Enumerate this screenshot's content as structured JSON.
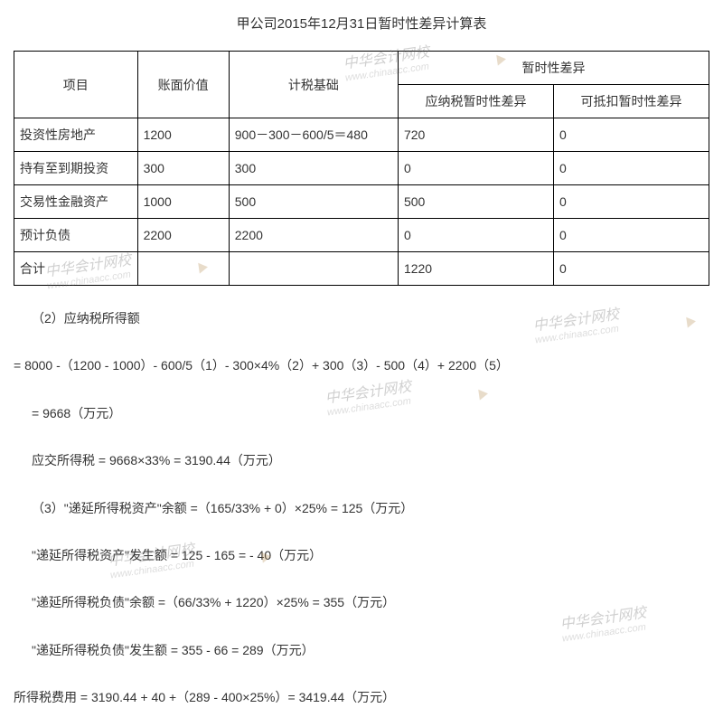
{
  "title": "甲公司2015年12月31日暂时性差异计算表",
  "table": {
    "headers": {
      "item": "项目",
      "book_value": "账面价值",
      "tax_basis": "计税基础",
      "temp_diff": "暂时性差异",
      "taxable_diff": "应纳税暂时性差异",
      "deductible_diff": "可抵扣暂时性差异"
    },
    "rows": [
      {
        "item": "投资性房地产",
        "book": "1200",
        "tax": "900－300－600/5＝480",
        "taxable": "720",
        "deductible": "0"
      },
      {
        "item": "持有至到期投资",
        "book": "300",
        "tax": "300",
        "taxable": "0",
        "deductible": "0"
      },
      {
        "item": "交易性金融资产",
        "book": "1000",
        "tax": "500",
        "taxable": "500",
        "deductible": "0"
      },
      {
        "item": "预计负债",
        "book": "2200",
        "tax": "2200",
        "taxable": "0",
        "deductible": "0"
      },
      {
        "item": "合计",
        "book": "",
        "tax": "",
        "taxable": "1220",
        "deductible": "0"
      }
    ]
  },
  "calculations": {
    "line1": "（2）应纳税所得额",
    "line2": "= 8000 -（1200 - 1000）- 600/5（1）- 300×4%（2）+ 300（3）- 500（4）+ 2200（5）",
    "line3": "= 9668（万元）",
    "line4": "应交所得税 = 9668×33% = 3190.44（万元）",
    "line5": "（3）\"递延所得税资产\"余额 =（165/33% + 0）×25% = 125（万元）",
    "line6": "\"递延所得税资产\"发生额 = 125 - 165 = - 40（万元）",
    "line7": "\"递延所得税负债\"余额 =（66/33% + 1220）×25% = 355（万元）",
    "line8": "\"递延所得税负债\"发生额 = 355 - 66 = 289（万元）",
    "line9": "所得税费用 = 3190.44 + 40 +（289 - 400×25%）= 3419.44（万元）"
  },
  "watermark": {
    "cn": "中华会计网校",
    "en": "www.chinaacc.com"
  },
  "colors": {
    "text": "#333333",
    "border": "#000000",
    "background": "#ffffff",
    "watermark": "rgba(128,128,128,0.25)"
  }
}
